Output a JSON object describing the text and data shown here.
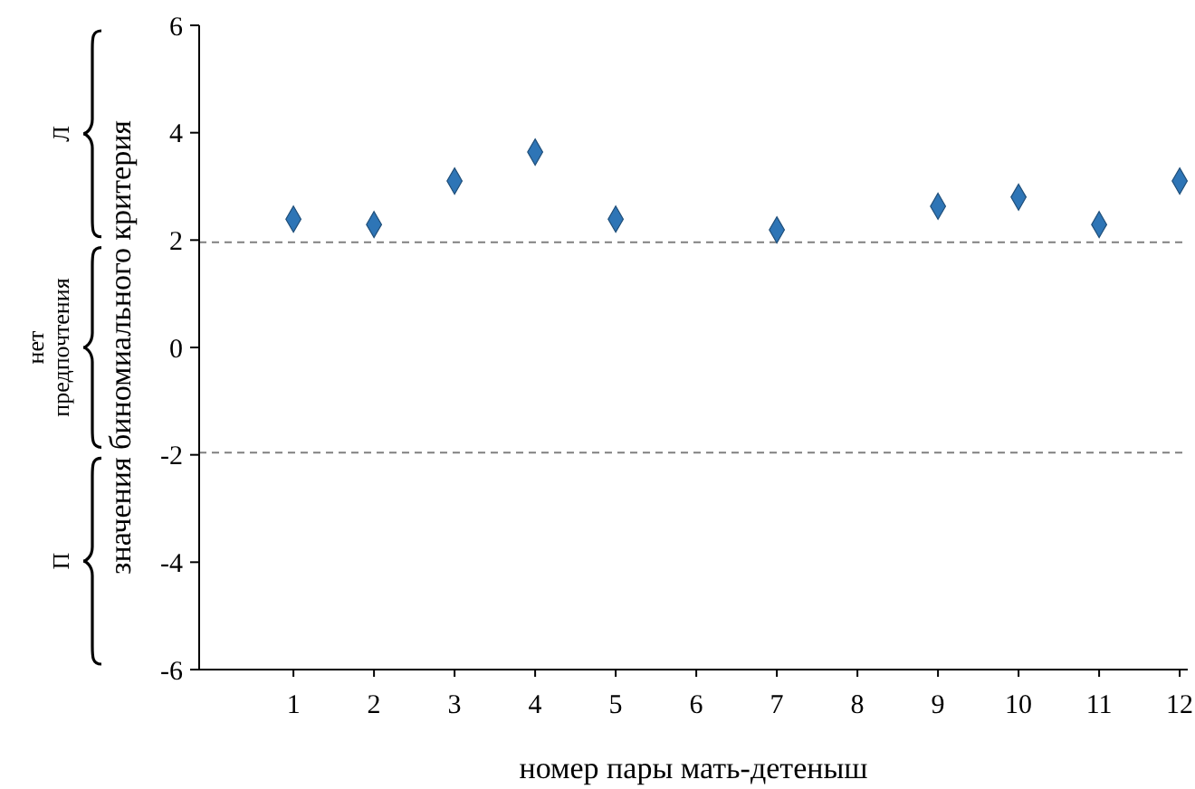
{
  "chart_data": {
    "type": "scatter",
    "xlabel": "номер пары мать-детеныш",
    "ylabel": "значения биномиального критерия",
    "x": [
      1,
      2,
      3,
      4,
      5,
      7,
      9,
      10,
      11,
      12
    ],
    "values": [
      2.39,
      2.29,
      3.1,
      3.64,
      2.39,
      2.19,
      2.63,
      2.8,
      2.29,
      3.1
    ],
    "color": "#2e75b6",
    "marker": "diamond",
    "grid": false,
    "xlim": [
      -0.17,
      12.1
    ],
    "xticks": [
      1,
      2,
      3,
      4,
      5,
      6,
      7,
      8,
      9,
      10,
      11,
      12
    ],
    "ylim": [
      -6,
      6
    ],
    "yticks": [
      -6,
      -4,
      -2,
      0,
      2,
      4,
      6
    ],
    "ref_lines": [
      {
        "axis": "y",
        "value": 1.96,
        "color": "#808080",
        "line_style": "dashed"
      },
      {
        "axis": "y",
        "value": -1.96,
        "color": "#808080",
        "line_style": "dashed"
      }
    ],
    "annotations": [
      "Л",
      "нет предпочтения",
      "П"
    ]
  }
}
